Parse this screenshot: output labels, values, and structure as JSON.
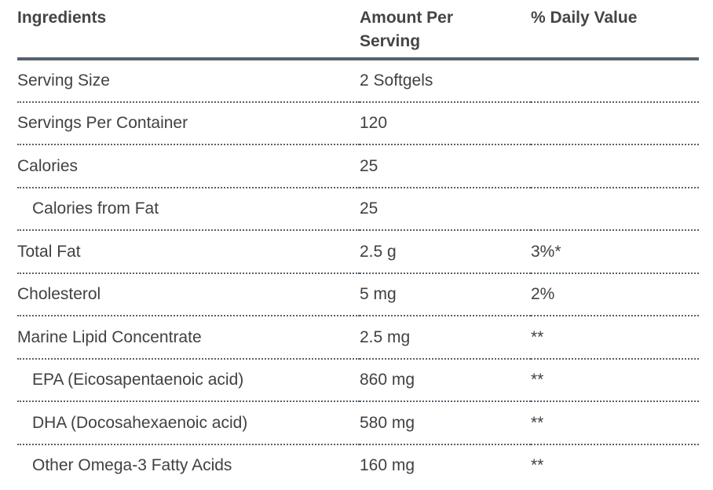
{
  "table": {
    "columns": [
      {
        "label": "Ingredients"
      },
      {
        "label": "Amount Per Serving"
      },
      {
        "label": "% Daily Value"
      }
    ],
    "rows": [
      {
        "ingredient": "Serving Size",
        "amount": "2 Softgels",
        "daily_value": "",
        "indent": false
      },
      {
        "ingredient": "Servings Per Container",
        "amount": "120",
        "daily_value": "",
        "indent": false
      },
      {
        "ingredient": "Calories",
        "amount": "25",
        "daily_value": "",
        "indent": false
      },
      {
        "ingredient": "Calories from Fat",
        "amount": "25",
        "daily_value": "",
        "indent": true
      },
      {
        "ingredient": "Total Fat",
        "amount": "2.5 g",
        "daily_value": "3%*",
        "indent": false
      },
      {
        "ingredient": "Cholesterol",
        "amount": "5 mg",
        "daily_value": "2%",
        "indent": false
      },
      {
        "ingredient": "Marine Lipid Concentrate",
        "amount": "2.5 mg",
        "daily_value": "**",
        "indent": false
      },
      {
        "ingredient": "EPA (Eicosapentaenoic acid)",
        "amount": "860 mg",
        "daily_value": "**",
        "indent": true
      },
      {
        "ingredient": "DHA (Docosahexaenoic acid)",
        "amount": "580 mg",
        "daily_value": "**",
        "indent": true
      },
      {
        "ingredient": "Other Omega-3 Fatty Acids",
        "amount": "160 mg",
        "daily_value": "**",
        "indent": true
      }
    ],
    "colors": {
      "rule": "#56626c",
      "header_text": "#454545",
      "body_text": "#414141",
      "background": "#ffffff"
    }
  }
}
